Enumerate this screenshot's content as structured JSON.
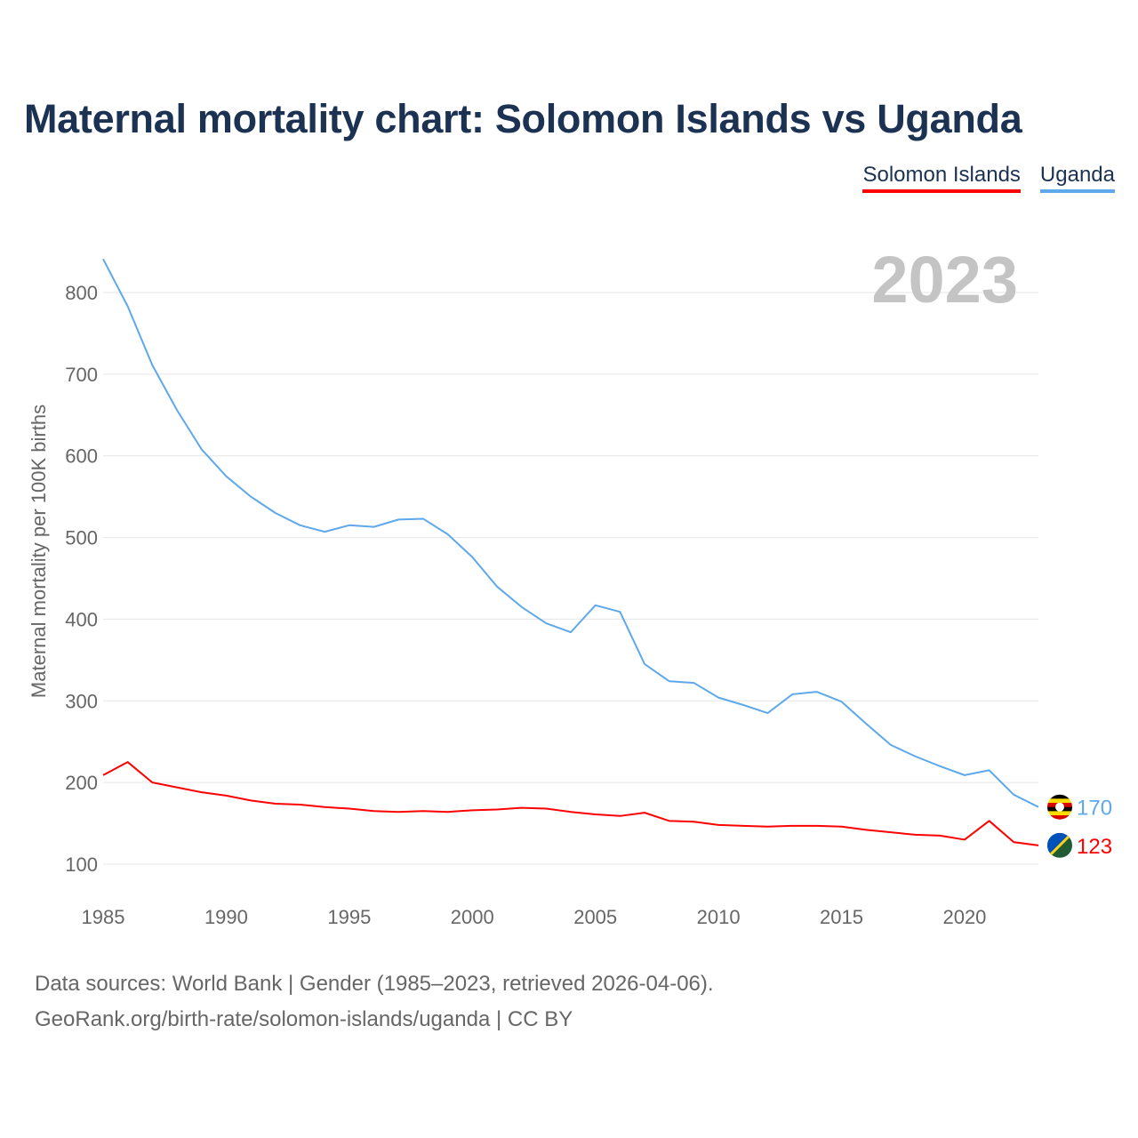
{
  "title": "Maternal mortality chart: Solomon Islands vs Uganda",
  "legend": [
    {
      "name": "Solomon Islands",
      "color": "#ff0000"
    },
    {
      "name": "Uganda",
      "color": "#5ea8ec"
    }
  ],
  "year_watermark": "2023",
  "footer": {
    "line1": "Data sources: World Bank | Gender (1985–2023, retrieved 2026-04-06).",
    "line2": "GeoRank.org/birth-rate/solomon-islands/uganda | CC BY"
  },
  "chart_data": {
    "type": "line",
    "title": "Maternal mortality chart: Solomon Islands vs Uganda",
    "xlabel": "",
    "ylabel": "Maternal mortality per 100K births",
    "xlim": [
      1985,
      2023
    ],
    "ylim": [
      100,
      800
    ],
    "x_ticks": [
      1985,
      1990,
      1995,
      2000,
      2005,
      2010,
      2015,
      2020
    ],
    "y_ticks": [
      100,
      200,
      300,
      400,
      500,
      600,
      700,
      800
    ],
    "grid": true,
    "legend_position": "top-right",
    "x": [
      1985,
      1986,
      1987,
      1988,
      1989,
      1990,
      1991,
      1992,
      1993,
      1994,
      1995,
      1996,
      1997,
      1998,
      1999,
      2000,
      2001,
      2002,
      2003,
      2004,
      2005,
      2006,
      2007,
      2008,
      2009,
      2010,
      2011,
      2012,
      2013,
      2014,
      2015,
      2016,
      2017,
      2018,
      2019,
      2020,
      2021,
      2022,
      2023
    ],
    "series": [
      {
        "name": "Uganda",
        "color": "#5ea8ec",
        "end_label": "170",
        "values": [
          841,
          783,
          711,
          656,
          608,
          575,
          550,
          530,
          515,
          507,
          515,
          513,
          522,
          523,
          504,
          476,
          440,
          415,
          395,
          384,
          417,
          409,
          345,
          324,
          322,
          304,
          295,
          285,
          308,
          311,
          299,
          272,
          246,
          232,
          220,
          209,
          215,
          185,
          170
        ]
      },
      {
        "name": "Solomon Islands",
        "color": "#ff0000",
        "end_label": "123",
        "values": [
          209,
          225,
          200,
          194,
          188,
          184,
          178,
          174,
          173,
          170,
          168,
          165,
          164,
          165,
          164,
          166,
          167,
          169,
          168,
          164,
          161,
          159,
          163,
          153,
          152,
          148,
          147,
          146,
          147,
          147,
          146,
          142,
          139,
          136,
          135,
          130,
          153,
          127,
          123
        ]
      }
    ]
  }
}
